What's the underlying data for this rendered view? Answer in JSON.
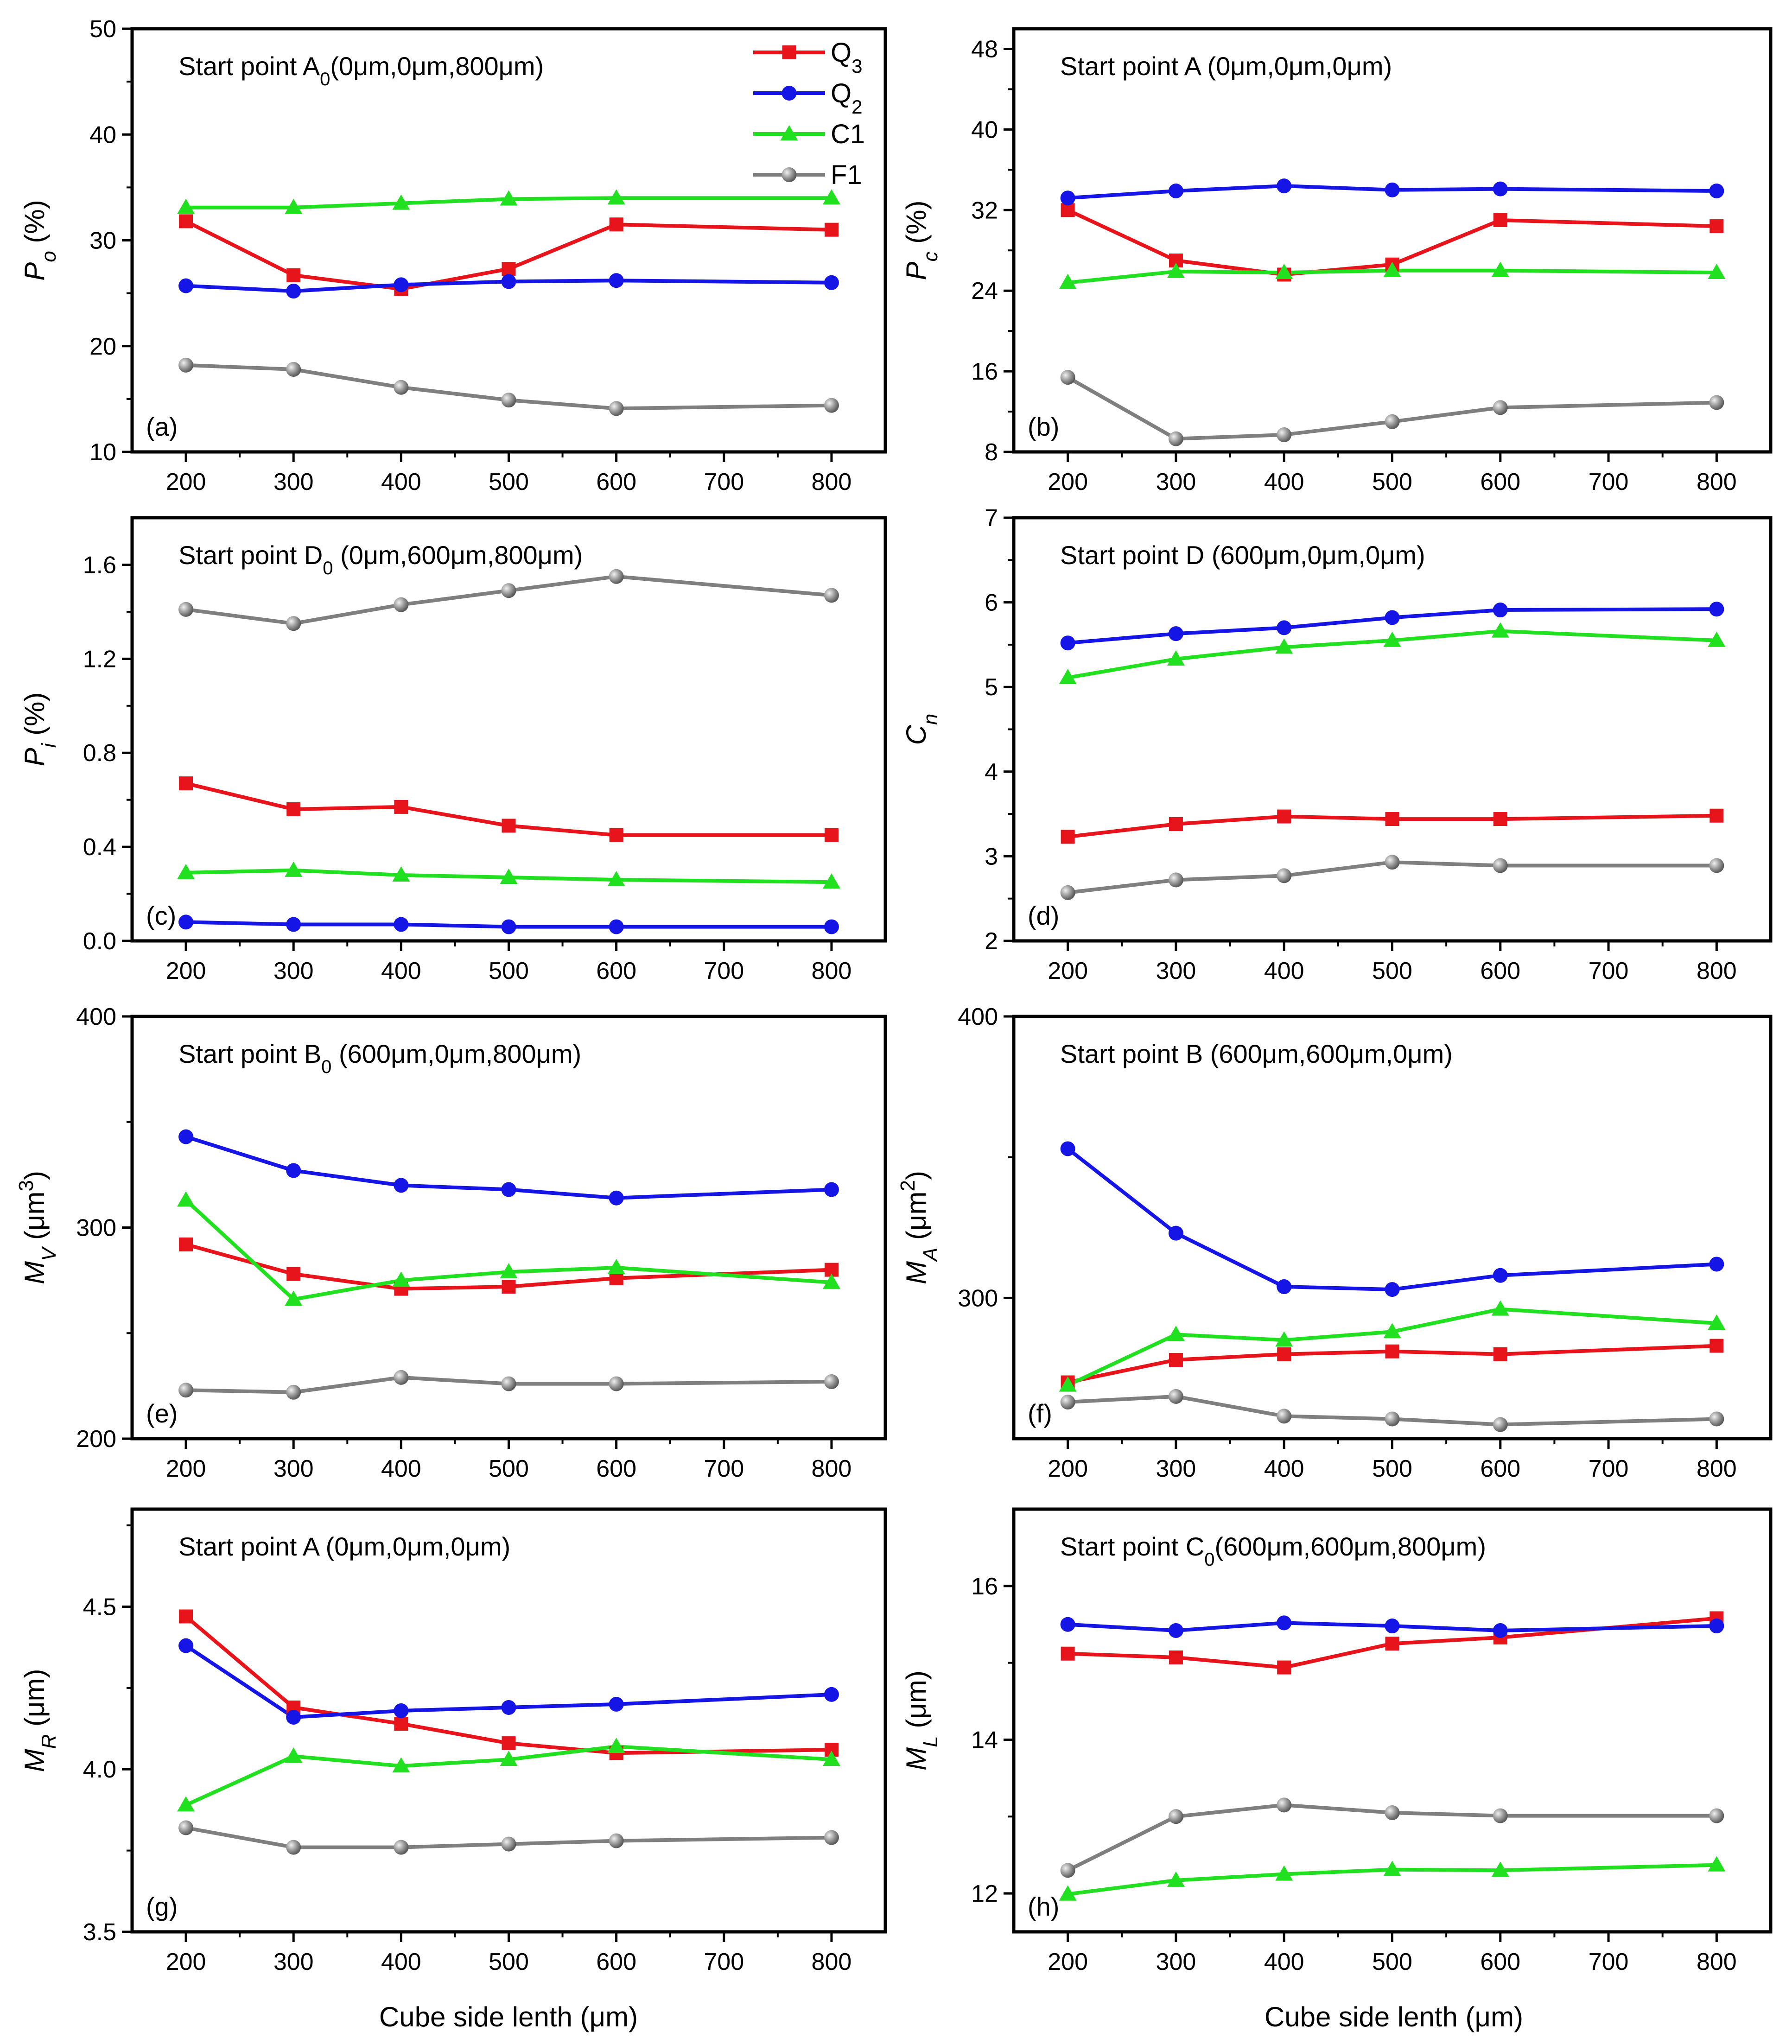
{
  "series_style": {
    "Q3": {
      "color": "#e8141b",
      "marker": "square"
    },
    "Q2": {
      "color": "#1515e6",
      "marker": "circle"
    },
    "C1": {
      "color": "#20e020",
      "marker": "triangle"
    },
    "F1": {
      "color": "#7f7f7f",
      "marker": "sphere"
    }
  },
  "legend": [
    {
      "key": "Q3",
      "label": "Q",
      "sub": "3"
    },
    {
      "key": "Q2",
      "label": "Q",
      "sub": "2"
    },
    {
      "key": "C1",
      "label": "C1",
      "sub": ""
    },
    {
      "key": "F1",
      "label": "F1",
      "sub": ""
    }
  ],
  "xlabel": "Cube side lenth (μm)",
  "chart_data": [
    {
      "id": "a",
      "type": "line",
      "panel_label": "(a)",
      "annotation": {
        "pre": "Start point A",
        "sub": "0",
        "post": "(0μm,0μm,800μm)"
      },
      "ylabel": {
        "pre": "P",
        "sub": "o",
        "post": " (%)"
      },
      "xlim": [
        150,
        850
      ],
      "xticks": [
        200,
        300,
        400,
        500,
        600,
        700,
        800
      ],
      "xticklabels": [
        "200",
        "300",
        "400",
        "500",
        "600",
        "700",
        "800"
      ],
      "ylim": [
        10,
        50
      ],
      "yticks": [
        10,
        20,
        30,
        40,
        50
      ],
      "yticklabels": [
        "10",
        "20",
        "30",
        "40",
        "50"
      ],
      "x": [
        200,
        300,
        400,
        500,
        600,
        800
      ],
      "series": [
        {
          "name": "Q3",
          "values": [
            31.8,
            26.7,
            25.4,
            27.3,
            31.5,
            31.0
          ]
        },
        {
          "name": "Q2",
          "values": [
            25.7,
            25.2,
            25.8,
            26.1,
            26.2,
            26.0
          ]
        },
        {
          "name": "C1",
          "values": [
            33.1,
            33.1,
            33.5,
            33.9,
            34.0,
            34.0
          ]
        },
        {
          "name": "F1",
          "values": [
            18.2,
            17.8,
            16.1,
            14.9,
            14.1,
            14.4
          ]
        }
      ]
    },
    {
      "id": "b",
      "type": "line",
      "panel_label": "(b)",
      "annotation": {
        "pre": "Start point A (0μm,0μm,0μm)",
        "sub": "",
        "post": ""
      },
      "ylabel": {
        "pre": "P",
        "sub": "c",
        "post": " (%)"
      },
      "xlim": [
        150,
        850
      ],
      "xticks": [
        200,
        300,
        400,
        500,
        600,
        700,
        800
      ],
      "xticklabels": [
        "200",
        "300",
        "400",
        "500",
        "600",
        "700",
        "800"
      ],
      "ylim": [
        8,
        50
      ],
      "yticks": [
        8,
        16,
        24,
        32,
        40,
        48
      ],
      "yticklabels": [
        "8",
        "16",
        "24",
        "32",
        "40",
        "48"
      ],
      "x": [
        200,
        300,
        400,
        500,
        600,
        800
      ],
      "series": [
        {
          "name": "Q3",
          "values": [
            32.0,
            27.0,
            25.6,
            26.6,
            31.0,
            30.4
          ]
        },
        {
          "name": "Q2",
          "values": [
            33.2,
            33.9,
            34.4,
            34.0,
            34.1,
            33.9
          ]
        },
        {
          "name": "C1",
          "values": [
            24.8,
            25.9,
            25.8,
            26.0,
            26.0,
            25.8
          ]
        },
        {
          "name": "F1",
          "values": [
            15.4,
            9.3,
            9.7,
            11.0,
            12.4,
            12.9
          ]
        }
      ]
    },
    {
      "id": "c",
      "type": "line",
      "panel_label": "(c)",
      "annotation": {
        "pre": "Start point D",
        "sub": "0",
        "post": " (0μm,600μm,800μm)"
      },
      "ylabel": {
        "pre": "P",
        "sub": "i",
        "post": " (%)"
      },
      "xlim": [
        150,
        850
      ],
      "xticks": [
        200,
        300,
        400,
        500,
        600,
        700,
        800
      ],
      "xticklabels": [
        "200",
        "300",
        "400",
        "500",
        "600",
        "700",
        "800"
      ],
      "ylim": [
        0,
        1.8
      ],
      "yticks": [
        0,
        0.4,
        0.8,
        1.2,
        1.6
      ],
      "yticklabels": [
        "0.0",
        "0.4",
        "0.8",
        "1.2",
        "1.6"
      ],
      "x": [
        200,
        300,
        400,
        500,
        600,
        800
      ],
      "series": [
        {
          "name": "Q3",
          "values": [
            0.67,
            0.56,
            0.57,
            0.49,
            0.45,
            0.45
          ]
        },
        {
          "name": "Q2",
          "values": [
            0.08,
            0.07,
            0.07,
            0.06,
            0.06,
            0.06
          ]
        },
        {
          "name": "C1",
          "values": [
            0.29,
            0.3,
            0.28,
            0.27,
            0.26,
            0.25
          ]
        },
        {
          "name": "F1",
          "values": [
            1.41,
            1.35,
            1.43,
            1.49,
            1.55,
            1.47
          ]
        }
      ]
    },
    {
      "id": "d",
      "type": "line",
      "panel_label": "(d)",
      "annotation": {
        "pre": "Start point D (600μm,0μm,0μm)",
        "sub": "",
        "post": ""
      },
      "ylabel": {
        "pre": "C",
        "sub": "n",
        "post": ""
      },
      "xlim": [
        150,
        850
      ],
      "xticks": [
        200,
        300,
        400,
        500,
        600,
        700,
        800
      ],
      "xticklabels": [
        "200",
        "300",
        "400",
        "500",
        "600",
        "700",
        "800"
      ],
      "ylim": [
        2,
        7
      ],
      "yticks": [
        2,
        3,
        4,
        5,
        6,
        7
      ],
      "yticklabels": [
        "2",
        "3",
        "4",
        "5",
        "6",
        "7"
      ],
      "x": [
        200,
        300,
        400,
        500,
        600,
        800
      ],
      "series": [
        {
          "name": "Q3",
          "values": [
            3.23,
            3.38,
            3.47,
            3.44,
            3.44,
            3.48
          ]
        },
        {
          "name": "Q2",
          "values": [
            5.52,
            5.63,
            5.7,
            5.82,
            5.91,
            5.92
          ]
        },
        {
          "name": "C1",
          "values": [
            5.11,
            5.33,
            5.47,
            5.55,
            5.66,
            5.55
          ]
        },
        {
          "name": "F1",
          "values": [
            2.57,
            2.72,
            2.77,
            2.93,
            2.89,
            2.89
          ]
        }
      ]
    },
    {
      "id": "e",
      "type": "line",
      "panel_label": "(e)",
      "annotation": {
        "pre": "Start point B",
        "sub": "0",
        "post": " (600μm,0μm,800μm)"
      },
      "ylabel": {
        "pre": "M",
        "sub": "V",
        "post": " (μm",
        "sup": "3",
        "end": ")"
      },
      "xlim": [
        150,
        850
      ],
      "xticks": [
        200,
        300,
        400,
        500,
        600,
        700,
        800
      ],
      "xticklabels": [
        "200",
        "300",
        "400",
        "500",
        "600",
        "700",
        "800"
      ],
      "ylim": [
        200,
        400
      ],
      "yticks": [
        200,
        300,
        400
      ],
      "yticklabels": [
        "200",
        "300",
        "400"
      ],
      "x": [
        200,
        300,
        400,
        500,
        600,
        800
      ],
      "series": [
        {
          "name": "Q3",
          "values": [
            292,
            278,
            271,
            272,
            276,
            280
          ]
        },
        {
          "name": "Q2",
          "values": [
            343,
            327,
            320,
            318,
            314,
            318
          ]
        },
        {
          "name": "C1",
          "values": [
            313,
            266,
            275,
            279,
            281,
            274
          ]
        },
        {
          "name": "F1",
          "values": [
            223,
            222,
            229,
            226,
            226,
            227
          ]
        }
      ]
    },
    {
      "id": "f",
      "type": "line",
      "panel_label": "(f)",
      "annotation": {
        "pre": "Start point B (600μm,600μm,0μm)",
        "sub": "",
        "post": ""
      },
      "ylabel": {
        "pre": "M",
        "sub": "A",
        "post": " (μm",
        "sup": "2",
        "end": ")"
      },
      "xlim": [
        150,
        850
      ],
      "xticks": [
        200,
        300,
        400,
        500,
        600,
        700,
        800
      ],
      "xticklabels": [
        "200",
        "300",
        "400",
        "500",
        "600",
        "700",
        "800"
      ],
      "ylim": [
        250,
        400
      ],
      "yticks": [
        300,
        400
      ],
      "yticklabels": [
        "300",
        "400"
      ],
      "x": [
        200,
        300,
        400,
        500,
        600,
        800
      ],
      "series": [
        {
          "name": "Q3",
          "values": [
            270,
            278,
            280,
            281,
            280,
            283
          ]
        },
        {
          "name": "Q2",
          "values": [
            353,
            323,
            304,
            303,
            308,
            312
          ]
        },
        {
          "name": "C1",
          "values": [
            269,
            287,
            285,
            288,
            296,
            291
          ]
        },
        {
          "name": "F1",
          "values": [
            263,
            265,
            258,
            257,
            255,
            257
          ]
        }
      ]
    },
    {
      "id": "g",
      "type": "line",
      "panel_label": "(g)",
      "annotation": {
        "pre": "Start point A (0μm,0μm,0μm)",
        "sub": "",
        "post": ""
      },
      "ylabel": {
        "pre": "M",
        "sub": "R",
        "post": " (μm)"
      },
      "xlim": [
        150,
        850
      ],
      "xticks": [
        200,
        300,
        400,
        500,
        600,
        700,
        800
      ],
      "xticklabels": [
        "200",
        "300",
        "400",
        "500",
        "600",
        "700",
        "800"
      ],
      "ylim": [
        3.5,
        4.8
      ],
      "yticks": [
        3.5,
        4.0,
        4.5
      ],
      "yticklabels": [
        "3.5",
        "4.0",
        "4.5"
      ],
      "x": [
        200,
        300,
        400,
        500,
        600,
        800
      ],
      "series": [
        {
          "name": "Q3",
          "values": [
            4.47,
            4.19,
            4.14,
            4.08,
            4.05,
            4.06
          ]
        },
        {
          "name": "Q2",
          "values": [
            4.38,
            4.16,
            4.18,
            4.19,
            4.2,
            4.23
          ]
        },
        {
          "name": "C1",
          "values": [
            3.89,
            4.04,
            4.01,
            4.03,
            4.07,
            4.03
          ]
        },
        {
          "name": "F1",
          "values": [
            3.82,
            3.76,
            3.76,
            3.77,
            3.78,
            3.79
          ]
        }
      ]
    },
    {
      "id": "h",
      "type": "line",
      "panel_label": "(h)",
      "annotation": {
        "pre": "Start point C",
        "sub": "0",
        "post": "(600μm,600μm,800μm)"
      },
      "ylabel": {
        "pre": "M",
        "sub": "L",
        "post": " (μm)"
      },
      "xlim": [
        150,
        850
      ],
      "xticks": [
        200,
        300,
        400,
        500,
        600,
        700,
        800
      ],
      "xticklabels": [
        "200",
        "300",
        "400",
        "500",
        "600",
        "700",
        "800"
      ],
      "ylim": [
        11.5,
        17.0
      ],
      "yticks": [
        12,
        14,
        16
      ],
      "yticklabels": [
        "12",
        "14",
        "16"
      ],
      "x": [
        200,
        300,
        400,
        500,
        600,
        800
      ],
      "series": [
        {
          "name": "Q3",
          "values": [
            15.12,
            15.07,
            14.94,
            15.25,
            15.33,
            15.58
          ]
        },
        {
          "name": "Q2",
          "values": [
            15.5,
            15.42,
            15.52,
            15.48,
            15.42,
            15.48
          ]
        },
        {
          "name": "C1",
          "values": [
            11.99,
            12.17,
            12.25,
            12.31,
            12.3,
            12.37
          ]
        },
        {
          "name": "F1",
          "values": [
            12.3,
            13.0,
            13.15,
            13.05,
            13.01,
            13.01
          ]
        }
      ]
    }
  ]
}
